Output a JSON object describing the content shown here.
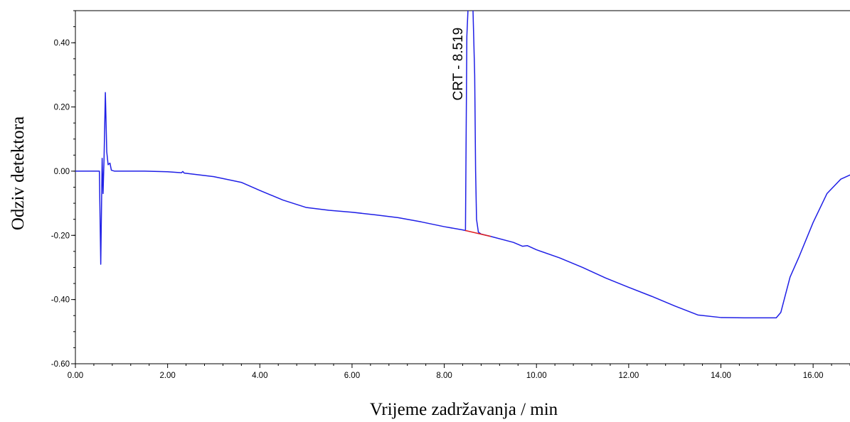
{
  "chart_data": {
    "type": "line",
    "xlabel": "Vrijeme zadržavanja / min",
    "ylabel": "Odziv detektora",
    "xlim": [
      0,
      16.8
    ],
    "ylim": [
      -0.6,
      0.5
    ],
    "x_ticks": [
      "0.00",
      "2.00",
      "4.00",
      "6.00",
      "8.00",
      "10.00",
      "12.00",
      "14.00",
      "16.00"
    ],
    "y_ticks": [
      "0.40",
      "0.20",
      "0.00",
      "-0.20",
      "-0.40",
      "-0.60"
    ],
    "x_tick_values": [
      0,
      2,
      4,
      6,
      8,
      10,
      12,
      14,
      16
    ],
    "y_tick_values": [
      0.4,
      0.2,
      0,
      -0.2,
      -0.4,
      -0.6
    ],
    "grid": false,
    "annotations": [
      {
        "text": "CRT - 8.519",
        "x": 8.519,
        "y": 0.22
      }
    ],
    "colors": {
      "signal": "#1f1fe6",
      "baseline": "#e01f1f"
    },
    "series": [
      {
        "points": [
          [
            0.0,
            0.0
          ],
          [
            0.4,
            0.0
          ],
          [
            0.52,
            0.0
          ],
          [
            0.55,
            -0.29
          ],
          [
            0.58,
            0.04
          ],
          [
            0.6,
            -0.07
          ],
          [
            0.62,
            0.03
          ],
          [
            0.65,
            0.245
          ],
          [
            0.68,
            0.06
          ],
          [
            0.71,
            0.02
          ],
          [
            0.75,
            0.025
          ],
          [
            0.78,
            0.003
          ],
          [
            0.85,
            0.0
          ],
          [
            1.5,
            0.0
          ],
          [
            2.0,
            -0.002
          ],
          [
            2.3,
            -0.005
          ],
          [
            2.33,
            -0.001
          ],
          [
            2.36,
            -0.006
          ],
          [
            3.0,
            -0.017
          ],
          [
            3.6,
            -0.035
          ],
          [
            4.0,
            -0.06
          ],
          [
            4.5,
            -0.09
          ],
          [
            5.0,
            -0.113
          ],
          [
            5.5,
            -0.122
          ],
          [
            6.0,
            -0.128
          ],
          [
            6.5,
            -0.136
          ],
          [
            7.0,
            -0.145
          ],
          [
            7.5,
            -0.158
          ],
          [
            8.0,
            -0.173
          ],
          [
            8.4,
            -0.183
          ],
          [
            8.46,
            -0.185
          ],
          [
            8.49,
            0.42
          ],
          [
            8.52,
            0.52
          ],
          [
            8.62,
            0.52
          ],
          [
            8.66,
            0.3
          ],
          [
            8.68,
            0.0
          ],
          [
            8.7,
            -0.15
          ],
          [
            8.74,
            -0.19
          ],
          [
            8.8,
            -0.196
          ],
          [
            9.0,
            -0.203
          ],
          [
            9.5,
            -0.222
          ],
          [
            9.7,
            -0.234
          ],
          [
            9.8,
            -0.232
          ],
          [
            10.0,
            -0.245
          ],
          [
            10.5,
            -0.27
          ],
          [
            11.0,
            -0.3
          ],
          [
            11.5,
            -0.333
          ],
          [
            12.0,
            -0.362
          ],
          [
            12.5,
            -0.39
          ],
          [
            13.0,
            -0.42
          ],
          [
            13.5,
            -0.448
          ],
          [
            14.0,
            -0.456
          ],
          [
            14.5,
            -0.457
          ],
          [
            15.0,
            -0.457
          ],
          [
            15.2,
            -0.457
          ],
          [
            15.3,
            -0.44
          ],
          [
            15.4,
            -0.385
          ],
          [
            15.5,
            -0.33
          ],
          [
            15.7,
            -0.265
          ],
          [
            16.0,
            -0.16
          ],
          [
            16.3,
            -0.07
          ],
          [
            16.6,
            -0.025
          ],
          [
            16.8,
            -0.012
          ]
        ]
      },
      {
        "points": [
          [
            8.46,
            -0.185
          ],
          [
            9.0,
            -0.203
          ]
        ]
      }
    ]
  }
}
